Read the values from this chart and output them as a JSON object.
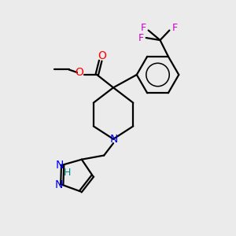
{
  "bg_color": "#ebebeb",
  "bond_color": "#000000",
  "N_color": "#0000ff",
  "O_color": "#ff0000",
  "F_color": "#cc00cc",
  "H_color": "#008080",
  "line_width": 1.6,
  "figsize": [
    3.0,
    3.0
  ],
  "dpi": 100,
  "xlim": [
    0,
    10
  ],
  "ylim": [
    0,
    10
  ]
}
